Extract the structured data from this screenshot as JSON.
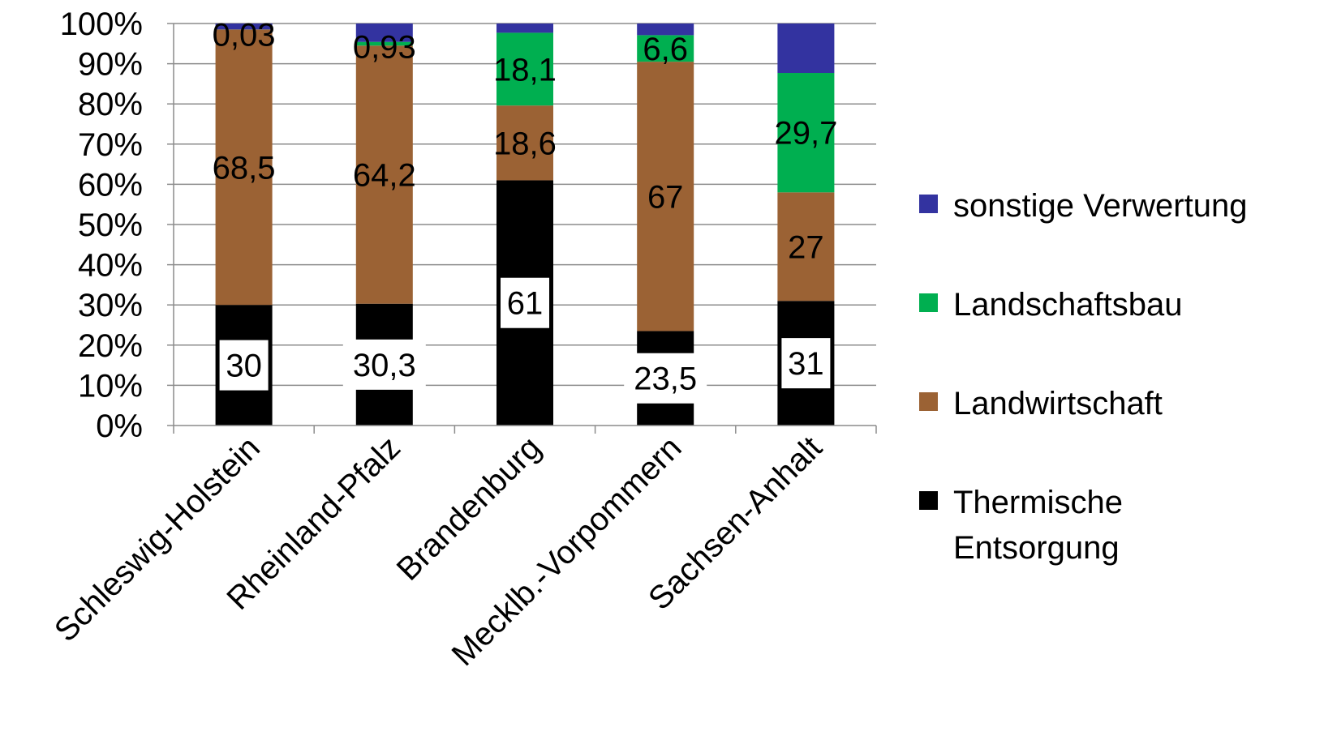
{
  "chart_data": {
    "type": "bar",
    "stacked": true,
    "percent_stacked": true,
    "title": "",
    "xlabel": "",
    "ylabel": "",
    "categories": [
      "Schleswig-Holstein",
      "Rheinland-Pfalz",
      "Brandenburg",
      "Mecklb.-Vorpommern",
      "Sachsen-Anhalt"
    ],
    "y_ticks": [
      "0%",
      "10%",
      "20%",
      "30%",
      "40%",
      "50%",
      "60%",
      "70%",
      "80%",
      "90%",
      "100%"
    ],
    "ylim": [
      0,
      100
    ],
    "grid": true,
    "legend_position": "right",
    "series": [
      {
        "name": "Thermische Entsorgung",
        "legend_lines": [
          "Thermische",
          "Entsorgung"
        ],
        "color": "#000000",
        "values": [
          30,
          30.3,
          61,
          23.5,
          31
        ],
        "labels": [
          "30",
          "30,3",
          "61",
          "23,5",
          "31"
        ]
      },
      {
        "name": "Landwirtschaft",
        "legend_lines": [
          "Landwirtschaft"
        ],
        "color": "#9B6234",
        "values": [
          68.5,
          64.2,
          18.6,
          67,
          27
        ],
        "labels": [
          "68,5",
          "64,2",
          "18,6",
          "67",
          "27"
        ]
      },
      {
        "name": "Landschaftsbau",
        "legend_lines": [
          "Landschaftsbau"
        ],
        "color": "#00AF50",
        "values": [
          0.03,
          0.93,
          18.1,
          6.6,
          29.7
        ],
        "labels": [
          "0,03",
          "0,93",
          "18,1",
          "6,6",
          "29,7"
        ]
      },
      {
        "name": "sonstige Verwertung",
        "legend_lines": [
          "sonstige Verwertung"
        ],
        "color": "#3333A0",
        "values": [
          1.47,
          4.57,
          2.3,
          2.9,
          12.3
        ],
        "labels": [
          "",
          "",
          "",
          "",
          ""
        ]
      }
    ]
  }
}
